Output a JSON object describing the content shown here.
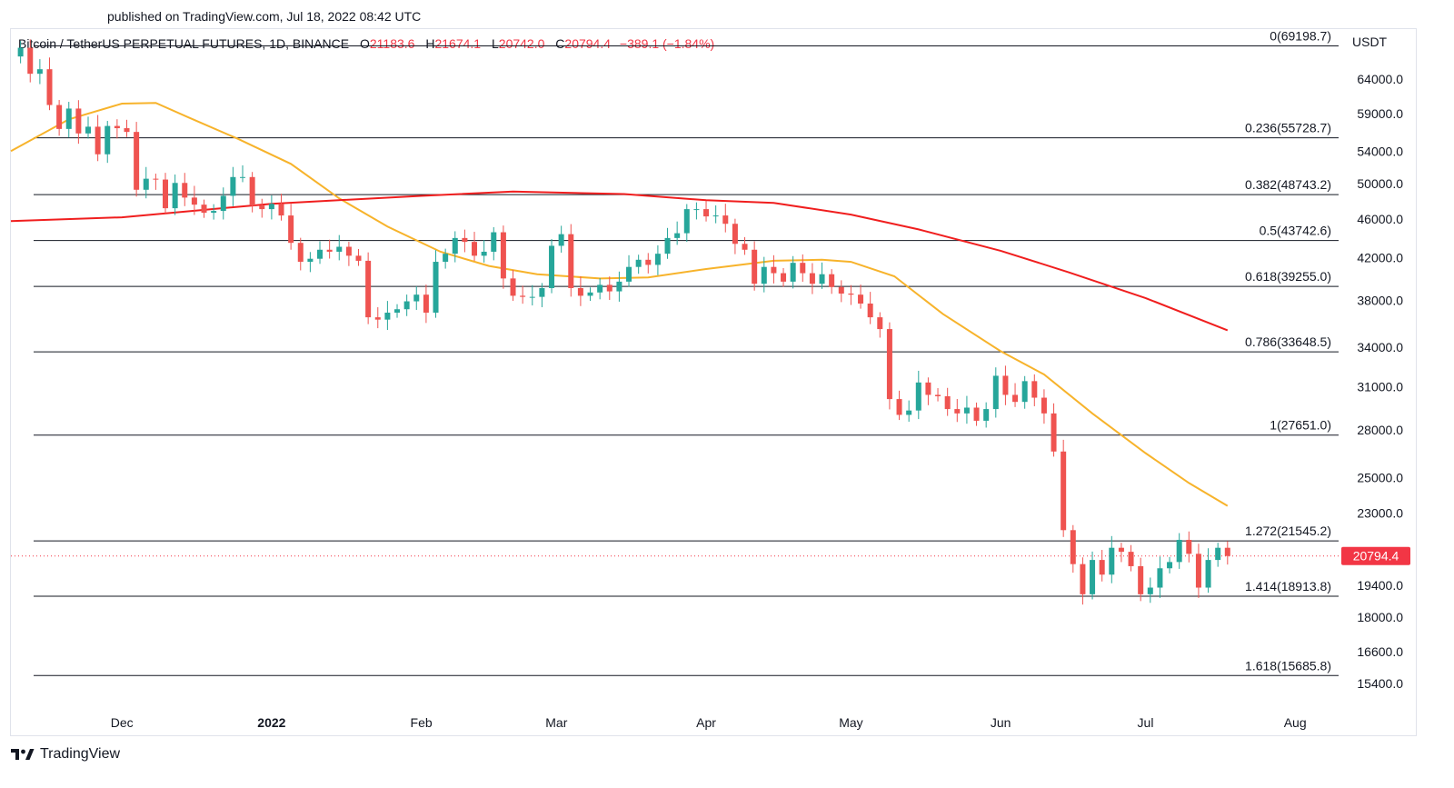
{
  "header": {
    "published": "published on TradingView.com, Jul 18, 2022 08:42 UTC",
    "symbol": "Bitcoin / TetherUS PERPETUAL FUTURES, 1D, BINANCE",
    "o_label": "O",
    "o_value": "21183.6",
    "h_label": "H",
    "h_value": "21674.1",
    "l_label": "L",
    "l_value": "20742.0",
    "c_label": "C",
    "c_value": "20794.4",
    "change": "−389.1 (−1.84%)"
  },
  "axis_unit": "USDT",
  "footer": {
    "brand": "TradingView",
    "logo_icon": "tradingview-logo-icon"
  },
  "colors": {
    "up": "#26a69a",
    "down": "#ef5350",
    "ma50": "#f7b32b",
    "ma200": "#f01e1e",
    "fib": "#131722",
    "last_price": "#f23645"
  },
  "chart_data": {
    "type": "line",
    "title": "",
    "scale": "log",
    "ylim": [
      14500,
      72000
    ],
    "x_range": [
      "2021-11-08",
      "2022-08-10"
    ],
    "y_ticks": [
      {
        "value": 64000,
        "label": "64000.0"
      },
      {
        "value": 59000,
        "label": "59000.0"
      },
      {
        "value": 54000,
        "label": "54000.0"
      },
      {
        "value": 50000,
        "label": "50000.0"
      },
      {
        "value": 46000,
        "label": "46000.0"
      },
      {
        "value": 42000,
        "label": "42000.0"
      },
      {
        "value": 38000,
        "label": "38000.0"
      },
      {
        "value": 34000,
        "label": "34000.0"
      },
      {
        "value": 31000,
        "label": "31000.0"
      },
      {
        "value": 28000,
        "label": "28000.0"
      },
      {
        "value": 25000,
        "label": "25000.0"
      },
      {
        "value": 23000,
        "label": "23000.0"
      },
      {
        "value": 19400,
        "label": "19400.0"
      },
      {
        "value": 18000,
        "label": "18000.0"
      },
      {
        "value": 16600,
        "label": "16600.0"
      },
      {
        "value": 15400,
        "label": "15400.0"
      }
    ],
    "x_ticks": [
      {
        "date": "2021-12-01",
        "label": "Dec"
      },
      {
        "date": "2022-01-01",
        "label": "2022"
      },
      {
        "date": "2022-02-01",
        "label": "Feb"
      },
      {
        "date": "2022-03-01",
        "label": "Mar"
      },
      {
        "date": "2022-04-01",
        "label": "Apr"
      },
      {
        "date": "2022-05-01",
        "label": "May"
      },
      {
        "date": "2022-06-01",
        "label": "Jun"
      },
      {
        "date": "2022-07-01",
        "label": "Jul"
      },
      {
        "date": "2022-08-01",
        "label": "Aug"
      }
    ],
    "fib_levels": [
      {
        "value": 69198.7,
        "label": "0(69198.7)"
      },
      {
        "value": 55728.7,
        "label": "0.236(55728.7)"
      },
      {
        "value": 48743.2,
        "label": "0.382(48743.2)"
      },
      {
        "value": 43742.6,
        "label": "0.5(43742.6)"
      },
      {
        "value": 39255.0,
        "label": "0.618(39255.0)"
      },
      {
        "value": 33648.5,
        "label": "0.786(33648.5)"
      },
      {
        "value": 27651.0,
        "label": "1(27651.0)"
      },
      {
        "value": 21545.2,
        "label": "1.272(21545.2)"
      },
      {
        "value": 18913.8,
        "label": "1.414(18913.8)"
      },
      {
        "value": 15685.8,
        "label": "1.618(15685.8)"
      }
    ],
    "last_price": {
      "value": 20794.4,
      "label": "20794.4"
    },
    "close_series": [
      [
        "2021-11-08",
        67500
      ],
      [
        "2021-11-10",
        68900
      ],
      [
        "2021-11-12",
        64800
      ],
      [
        "2021-11-14",
        65500
      ],
      [
        "2021-11-16",
        60200
      ],
      [
        "2021-11-18",
        56900
      ],
      [
        "2021-11-20",
        59700
      ],
      [
        "2021-11-22",
        56300
      ],
      [
        "2021-11-24",
        57200
      ],
      [
        "2021-11-26",
        53600
      ],
      [
        "2021-11-28",
        57300
      ],
      [
        "2021-11-30",
        57000
      ],
      [
        "2021-12-02",
        56500
      ],
      [
        "2021-12-04",
        49300
      ],
      [
        "2021-12-06",
        50600
      ],
      [
        "2021-12-08",
        50500
      ],
      [
        "2021-12-10",
        47200
      ],
      [
        "2021-12-12",
        50100
      ],
      [
        "2021-12-14",
        48400
      ],
      [
        "2021-12-16",
        47600
      ],
      [
        "2021-12-18",
        46700
      ],
      [
        "2021-12-20",
        46900
      ],
      [
        "2021-12-22",
        48600
      ],
      [
        "2021-12-24",
        50800
      ],
      [
        "2021-12-26",
        50800
      ],
      [
        "2021-12-28",
        47500
      ],
      [
        "2021-12-30",
        47100
      ],
      [
        "2022-01-01",
        47700
      ],
      [
        "2022-01-03",
        46400
      ],
      [
        "2022-01-05",
        43500
      ],
      [
        "2022-01-07",
        41600
      ],
      [
        "2022-01-09",
        41900
      ],
      [
        "2022-01-11",
        42800
      ],
      [
        "2022-01-13",
        42600
      ],
      [
        "2022-01-15",
        43100
      ],
      [
        "2022-01-17",
        42200
      ],
      [
        "2022-01-19",
        41700
      ],
      [
        "2022-01-21",
        36500
      ],
      [
        "2022-01-23",
        36300
      ],
      [
        "2022-01-25",
        36900
      ],
      [
        "2022-01-27",
        37200
      ],
      [
        "2022-01-29",
        37900
      ],
      [
        "2022-01-31",
        38500
      ],
      [
        "2022-02-02",
        36900
      ],
      [
        "2022-02-04",
        41600
      ],
      [
        "2022-02-06",
        42400
      ],
      [
        "2022-02-08",
        44000
      ],
      [
        "2022-02-10",
        43600
      ],
      [
        "2022-02-12",
        42200
      ],
      [
        "2022-02-14",
        42600
      ],
      [
        "2022-02-16",
        44600
      ],
      [
        "2022-02-18",
        40000
      ],
      [
        "2022-02-20",
        38400
      ],
      [
        "2022-02-22",
        38300
      ],
      [
        "2022-02-24",
        38300
      ],
      [
        "2022-02-26",
        39100
      ],
      [
        "2022-02-28",
        43200
      ],
      [
        "2022-03-02",
        44400
      ],
      [
        "2022-03-04",
        39100
      ],
      [
        "2022-03-06",
        38400
      ],
      [
        "2022-03-08",
        38700
      ],
      [
        "2022-03-10",
        39400
      ],
      [
        "2022-03-12",
        38800
      ],
      [
        "2022-03-14",
        39700
      ],
      [
        "2022-03-16",
        41100
      ],
      [
        "2022-03-18",
        41800
      ],
      [
        "2022-03-20",
        41300
      ],
      [
        "2022-03-22",
        42400
      ],
      [
        "2022-03-24",
        44000
      ],
      [
        "2022-03-26",
        44500
      ],
      [
        "2022-03-28",
        47100
      ],
      [
        "2022-03-30",
        47100
      ],
      [
        "2022-04-01",
        46300
      ],
      [
        "2022-04-03",
        46400
      ],
      [
        "2022-04-05",
        45500
      ],
      [
        "2022-04-07",
        43400
      ],
      [
        "2022-04-09",
        42800
      ],
      [
        "2022-04-11",
        39500
      ],
      [
        "2022-04-13",
        41100
      ],
      [
        "2022-04-15",
        40500
      ],
      [
        "2022-04-17",
        39700
      ],
      [
        "2022-04-19",
        41500
      ],
      [
        "2022-04-21",
        40500
      ],
      [
        "2022-04-23",
        39500
      ],
      [
        "2022-04-25",
        40400
      ],
      [
        "2022-04-27",
        39200
      ],
      [
        "2022-04-29",
        38600
      ],
      [
        "2022-05-01",
        38500
      ],
      [
        "2022-05-03",
        37700
      ],
      [
        "2022-05-05",
        36500
      ],
      [
        "2022-05-07",
        35500
      ],
      [
        "2022-05-09",
        30100
      ],
      [
        "2022-05-11",
        29000
      ],
      [
        "2022-05-13",
        29300
      ],
      [
        "2022-05-15",
        31300
      ],
      [
        "2022-05-17",
        30400
      ],
      [
        "2022-05-19",
        30300
      ],
      [
        "2022-05-21",
        29400
      ],
      [
        "2022-05-23",
        29100
      ],
      [
        "2022-05-25",
        29500
      ],
      [
        "2022-05-27",
        28600
      ],
      [
        "2022-05-29",
        29400
      ],
      [
        "2022-05-31",
        31800
      ],
      [
        "2022-06-02",
        30400
      ],
      [
        "2022-06-04",
        29900
      ],
      [
        "2022-06-06",
        31400
      ],
      [
        "2022-06-08",
        30200
      ],
      [
        "2022-06-10",
        29100
      ],
      [
        "2022-06-12",
        26600
      ],
      [
        "2022-06-14",
        22100
      ],
      [
        "2022-06-16",
        20400
      ],
      [
        "2022-06-18",
        19000
      ],
      [
        "2022-06-20",
        20600
      ],
      [
        "2022-06-22",
        19900
      ],
      [
        "2022-06-24",
        21200
      ],
      [
        "2022-06-26",
        21000
      ],
      [
        "2022-06-28",
        20300
      ],
      [
        "2022-06-30",
        19000
      ],
      [
        "2022-07-02",
        19300
      ],
      [
        "2022-07-04",
        20200
      ],
      [
        "2022-07-06",
        20500
      ],
      [
        "2022-07-08",
        21600
      ],
      [
        "2022-07-10",
        20900
      ],
      [
        "2022-07-12",
        19300
      ],
      [
        "2022-07-14",
        20600
      ],
      [
        "2022-07-16",
        21200
      ],
      [
        "2022-07-18",
        20794.4
      ]
    ],
    "series": [
      {
        "values": [
          [
            "2021-11-08",
            54000
          ],
          [
            "2021-11-20",
            58200
          ],
          [
            "2021-12-01",
            60400
          ],
          [
            "2021-12-08",
            60500
          ],
          [
            "2021-12-15",
            58400
          ],
          [
            "2021-12-25",
            55600
          ],
          [
            "2022-01-05",
            52400
          ],
          [
            "2022-01-15",
            48300
          ],
          [
            "2022-01-25",
            45200
          ],
          [
            "2022-02-05",
            42600
          ],
          [
            "2022-02-15",
            41200
          ],
          [
            "2022-02-25",
            40400
          ],
          [
            "2022-03-10",
            40000
          ],
          [
            "2022-03-20",
            40100
          ],
          [
            "2022-04-01",
            40900
          ],
          [
            "2022-04-15",
            41700
          ],
          [
            "2022-04-25",
            41800
          ],
          [
            "2022-05-01",
            41600
          ],
          [
            "2022-05-10",
            40200
          ],
          [
            "2022-05-20",
            36800
          ],
          [
            "2022-06-01",
            33700
          ],
          [
            "2022-06-10",
            31900
          ],
          [
            "2022-06-20",
            29100
          ],
          [
            "2022-07-01",
            26500
          ],
          [
            "2022-07-10",
            24700
          ],
          [
            "2022-07-18",
            23400
          ]
        ]
      },
      {
        "values": [
          [
            "2021-11-08",
            45800
          ],
          [
            "2021-12-01",
            46200
          ],
          [
            "2022-01-01",
            47700
          ],
          [
            "2022-02-01",
            48600
          ],
          [
            "2022-02-20",
            49100
          ],
          [
            "2022-03-15",
            48800
          ],
          [
            "2022-04-01",
            48100
          ],
          [
            "2022-04-15",
            47800
          ],
          [
            "2022-05-01",
            46500
          ],
          [
            "2022-05-15",
            44900
          ],
          [
            "2022-06-01",
            42700
          ],
          [
            "2022-06-15",
            40600
          ],
          [
            "2022-07-01",
            38200
          ],
          [
            "2022-07-18",
            35400
          ]
        ]
      }
    ]
  }
}
